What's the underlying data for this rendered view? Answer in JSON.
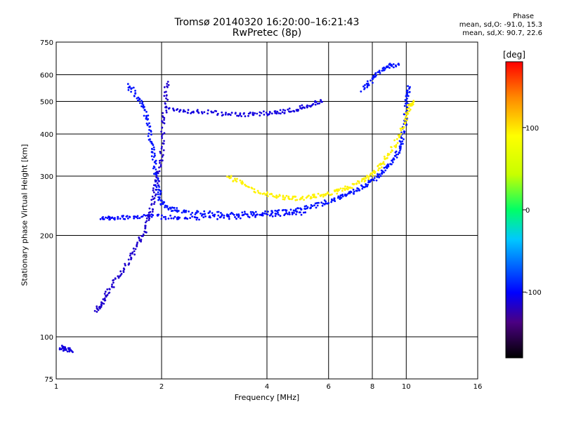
{
  "chart_data": {
    "type": "scatter",
    "title": "Tromsø 20140320 16:20:00–16:21:43",
    "subtitle": "RwPretec (8p)",
    "xlabel": "Frequency [MHz]",
    "ylabel": "Stationary phase Virtual Height [km]",
    "x_scale": "log",
    "y_scale": "log",
    "xlim": [
      1,
      16
    ],
    "ylim": [
      75,
      750
    ],
    "x_ticks": [
      "1",
      "2",
      "4",
      "6",
      "8",
      "10",
      "16"
    ],
    "y_ticks": [
      "75",
      "100",
      "200",
      "300",
      "400",
      "500",
      "600",
      "750"
    ],
    "grid": true,
    "colorbar": {
      "label": "[deg]",
      "range": [
        -180,
        180
      ],
      "ticks": [
        "100",
        "0",
        "-100"
      ]
    },
    "phase_stats": {
      "title": "Phase",
      "o_line": "mean, sd,O: -91.0, 15.3",
      "x_line": "mean, sd,X:  90.7, 22.6"
    },
    "traces": [
      {
        "name": "",
        "phase": -95,
        "points": [
          [
            1.6,
            560
          ],
          [
            1.7,
            520
          ],
          [
            1.78,
            480
          ],
          [
            1.83,
            430
          ],
          [
            1.87,
            380
          ],
          [
            1.9,
            340
          ],
          [
            1.93,
            300
          ],
          [
            1.96,
            270
          ],
          [
            2.0,
            250
          ],
          [
            2.1,
            240
          ],
          [
            2.3,
            235
          ],
          [
            2.6,
            233
          ],
          [
            3.0,
            232
          ],
          [
            3.5,
            232
          ],
          [
            4.0,
            233
          ],
          [
            4.5,
            235
          ],
          [
            5.0,
            240
          ],
          [
            5.5,
            245
          ],
          [
            6.0,
            252
          ],
          [
            6.5,
            260
          ],
          [
            7.0,
            268
          ],
          [
            7.5,
            278
          ],
          [
            8.0,
            290
          ],
          [
            8.5,
            305
          ],
          [
            9.0,
            325
          ],
          [
            9.4,
            350
          ],
          [
            9.7,
            380
          ],
          [
            9.9,
            420
          ],
          [
            10.0,
            470
          ],
          [
            10.1,
            520
          ],
          [
            10.2,
            560
          ]
        ]
      },
      {
        "name": "",
        "phase": -100,
        "points": [
          [
            1.35,
            225
          ],
          [
            1.45,
            226
          ],
          [
            1.6,
            227
          ],
          [
            1.8,
            228
          ],
          [
            2.0,
            227
          ],
          [
            2.3,
            226
          ],
          [
            2.7,
            226
          ],
          [
            3.2,
            227
          ],
          [
            3.8,
            229
          ],
          [
            4.5,
            231
          ],
          [
            5.2,
            234
          ]
        ]
      },
      {
        "name": "",
        "phase": -110,
        "points": [
          [
            2.05,
            475
          ],
          [
            2.3,
            470
          ],
          [
            2.6,
            465
          ],
          [
            3.0,
            460
          ],
          [
            3.4,
            458
          ],
          [
            3.8,
            460
          ],
          [
            4.2,
            462
          ],
          [
            4.6,
            468
          ],
          [
            5.0,
            478
          ],
          [
            5.4,
            490
          ],
          [
            5.8,
            505
          ]
        ]
      },
      {
        "name": "",
        "phase": 95,
        "points": [
          [
            3.1,
            300
          ],
          [
            3.4,
            285
          ],
          [
            3.8,
            270
          ],
          [
            4.2,
            262
          ],
          [
            4.6,
            258
          ],
          [
            5.0,
            258
          ],
          [
            5.5,
            262
          ],
          [
            6.0,
            265
          ],
          [
            6.5,
            272
          ],
          [
            7.0,
            280
          ],
          [
            7.5,
            292
          ],
          [
            8.0,
            305
          ],
          [
            8.5,
            325
          ],
          [
            9.0,
            350
          ],
          [
            9.5,
            390
          ],
          [
            9.9,
            440
          ],
          [
            10.2,
            480
          ],
          [
            10.5,
            500
          ]
        ]
      },
      {
        "name": "",
        "phase": -115,
        "points": [
          [
            1.3,
            120
          ],
          [
            1.35,
            125
          ],
          [
            1.4,
            135
          ],
          [
            1.5,
            150
          ],
          [
            1.6,
            165
          ],
          [
            1.7,
            185
          ],
          [
            1.78,
            205
          ],
          [
            1.85,
            230
          ],
          [
            1.9,
            260
          ],
          [
            1.95,
            300
          ],
          [
            2.0,
            350
          ],
          [
            2.02,
            420
          ],
          [
            2.05,
            500
          ],
          [
            2.08,
            580
          ]
        ]
      },
      {
        "name": "",
        "phase": -95,
        "points": [
          [
            7.5,
            540
          ],
          [
            8.0,
            580
          ],
          [
            8.5,
            620
          ],
          [
            9.0,
            640
          ],
          [
            9.5,
            640
          ]
        ]
      },
      {
        "name": "",
        "phase": -110,
        "points": [
          [
            1.03,
            93
          ],
          [
            1.06,
            92
          ],
          [
            1.12,
            91
          ]
        ]
      }
    ]
  }
}
